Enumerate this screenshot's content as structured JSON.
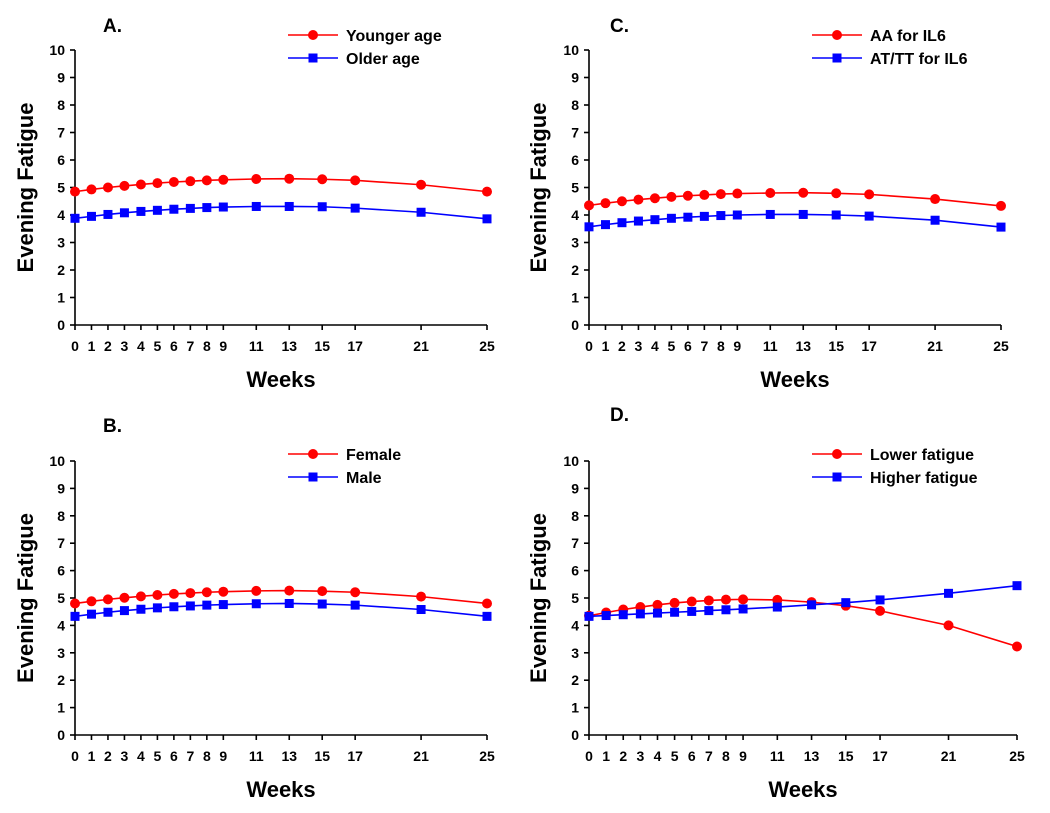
{
  "chart_data": [
    {
      "type": "line",
      "panel": "A.",
      "xlabel": "Weeks",
      "ylabel": "Evening Fatigue",
      "ylim": [
        0,
        10
      ],
      "yticks": [
        0,
        1,
        2,
        3,
        4,
        5,
        6,
        7,
        8,
        9,
        10
      ],
      "x": [
        0,
        1,
        2,
        3,
        4,
        5,
        6,
        7,
        8,
        9,
        11,
        13,
        15,
        17,
        21,
        25
      ],
      "xtick_labels": [
        "0",
        "1",
        "2",
        "3",
        "4",
        "5",
        "6",
        "7",
        "8",
        "9",
        "11",
        "13",
        "15",
        "17",
        "21",
        "25"
      ],
      "legend_position": "top-right",
      "series": [
        {
          "name": "Younger age",
          "color": "#ff0000",
          "marker": "circle",
          "values": [
            4.85,
            4.93,
            5.0,
            5.06,
            5.11,
            5.16,
            5.2,
            5.23,
            5.26,
            5.28,
            5.31,
            5.32,
            5.3,
            5.26,
            5.1,
            4.85
          ]
        },
        {
          "name": "Older age",
          "color": "#0000ff",
          "marker": "square",
          "values": [
            3.88,
            3.95,
            4.02,
            4.08,
            4.13,
            4.17,
            4.21,
            4.24,
            4.27,
            4.29,
            4.31,
            4.31,
            4.3,
            4.25,
            4.1,
            3.86
          ]
        }
      ]
    },
    {
      "type": "line",
      "panel": "B.",
      "xlabel": "Weeks",
      "ylabel": "Evening Fatigue",
      "ylim": [
        0,
        10
      ],
      "yticks": [
        0,
        1,
        2,
        3,
        4,
        5,
        6,
        7,
        8,
        9,
        10
      ],
      "x": [
        0,
        1,
        2,
        3,
        4,
        5,
        6,
        7,
        8,
        9,
        11,
        13,
        15,
        17,
        21,
        25
      ],
      "xtick_labels": [
        "0",
        "1",
        "2",
        "3",
        "4",
        "5",
        "6",
        "7",
        "8",
        "9",
        "11",
        "13",
        "15",
        "17",
        "21",
        "25"
      ],
      "legend_position": "top-right",
      "series": [
        {
          "name": "Female",
          "color": "#ff0000",
          "marker": "circle",
          "values": [
            4.8,
            4.88,
            4.95,
            5.01,
            5.06,
            5.11,
            5.15,
            5.18,
            5.21,
            5.23,
            5.26,
            5.27,
            5.25,
            5.21,
            5.05,
            4.8
          ]
        },
        {
          "name": "Male",
          "color": "#0000ff",
          "marker": "square",
          "values": [
            4.33,
            4.41,
            4.48,
            4.54,
            4.59,
            4.64,
            4.68,
            4.71,
            4.74,
            4.76,
            4.79,
            4.8,
            4.78,
            4.74,
            4.58,
            4.33
          ]
        }
      ]
    },
    {
      "type": "line",
      "panel": "C.",
      "xlabel": "Weeks",
      "ylabel": "Evening Fatigue",
      "ylim": [
        0,
        10
      ],
      "yticks": [
        0,
        1,
        2,
        3,
        4,
        5,
        6,
        7,
        8,
        9,
        10
      ],
      "x": [
        0,
        1,
        2,
        3,
        4,
        5,
        6,
        7,
        8,
        9,
        11,
        13,
        15,
        17,
        21,
        25
      ],
      "xtick_labels": [
        "0",
        "1",
        "2",
        "3",
        "4",
        "5",
        "6",
        "7",
        "8",
        "9",
        "11",
        "13",
        "15",
        "17",
        "21",
        "25"
      ],
      "legend_position": "top-right",
      "series": [
        {
          "name": "AA for IL6",
          "color": "#ff0000",
          "marker": "circle",
          "values": [
            4.35,
            4.43,
            4.5,
            4.56,
            4.61,
            4.66,
            4.7,
            4.73,
            4.76,
            4.78,
            4.8,
            4.81,
            4.79,
            4.75,
            4.58,
            4.33
          ]
        },
        {
          "name": "AT/TT for IL6",
          "color": "#0000ff",
          "marker": "square",
          "values": [
            3.57,
            3.65,
            3.72,
            3.78,
            3.83,
            3.88,
            3.92,
            3.95,
            3.98,
            4.0,
            4.02,
            4.02,
            4.0,
            3.96,
            3.81,
            3.56
          ]
        }
      ]
    },
    {
      "type": "line",
      "panel": "D.",
      "xlabel": "Weeks",
      "ylabel": "Evening Fatigue",
      "ylim": [
        0,
        10
      ],
      "yticks": [
        0,
        1,
        2,
        3,
        4,
        5,
        6,
        7,
        8,
        9,
        10
      ],
      "x": [
        0,
        1,
        2,
        3,
        4,
        5,
        6,
        7,
        8,
        9,
        11,
        13,
        15,
        17,
        21,
        25
      ],
      "xtick_labels": [
        "0",
        "1",
        "2",
        "3",
        "4",
        "5",
        "6",
        "7",
        "8",
        "9",
        "11",
        "13",
        "15",
        "17",
        "21",
        "25"
      ],
      "legend_position": "top-right",
      "series": [
        {
          "name": "Lower fatigue",
          "color": "#ff0000",
          "marker": "circle",
          "values": [
            4.35,
            4.47,
            4.58,
            4.67,
            4.75,
            4.82,
            4.87,
            4.91,
            4.94,
            4.95,
            4.93,
            4.85,
            4.72,
            4.53,
            4.0,
            3.23
          ]
        },
        {
          "name": "Higher fatigue",
          "color": "#0000ff",
          "marker": "square",
          "values": [
            4.33,
            4.36,
            4.39,
            4.42,
            4.45,
            4.48,
            4.51,
            4.54,
            4.57,
            4.6,
            4.67,
            4.75,
            4.83,
            4.93,
            5.17,
            5.45
          ]
        }
      ]
    }
  ]
}
